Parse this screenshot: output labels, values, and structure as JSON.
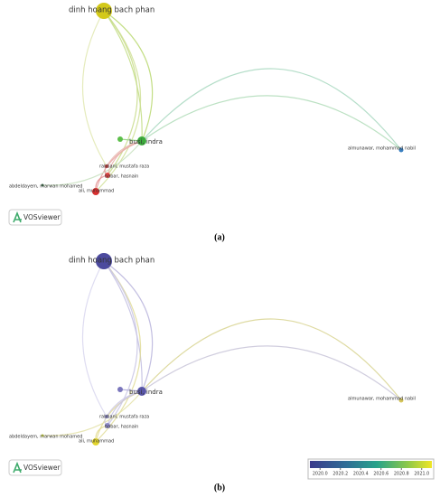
{
  "panels": [
    {
      "label": "(a)",
      "logo": "VOSviewer",
      "nodes": [
        {
          "label": "dinh hoang bach phan",
          "color": "#d3c91a"
        },
        {
          "label": "busi, indra",
          "color": "#3caa3c"
        },
        {
          "label": "rabbani, mustafa raza",
          "color": "#c84040"
        },
        {
          "label": "babar, hasnain",
          "color": "#e04545"
        },
        {
          "label": "abdeldayem, marwan mohamed",
          "color": "#3d6b4a"
        },
        {
          "label": "ali, muhammad",
          "color": "#d83030"
        },
        {
          "label": "almunawar, mohammad nabil",
          "color": "#3a7fc0"
        }
      ]
    },
    {
      "label": "(b)",
      "logo": "VOSviewer",
      "nodes": [
        {
          "label": "dinh hoang bach phan",
          "color": "#4c4a9e"
        },
        {
          "label": "busi, indra",
          "color": "#5956a8"
        },
        {
          "label": "rabbani, mustafa raza",
          "color": "#8a86c4"
        },
        {
          "label": "babar, hasnain",
          "color": "#8c88c8"
        },
        {
          "label": "abdeldayem, marwan mohamed",
          "color": "#c8d24a"
        },
        {
          "label": "ali, muhammad",
          "color": "#e2d52e"
        },
        {
          "label": "almunawar, mohammad nabil",
          "color": "#d6c65c"
        }
      ],
      "colorbar": {
        "lim": [
          2019.9,
          2021.1
        ],
        "ticks": [
          {
            "value": 2020,
            "label": "2020.0"
          },
          {
            "value": 2020.2,
            "label": "2020.2"
          },
          {
            "value": 2020.4,
            "label": "2020.4"
          },
          {
            "value": 2020.6,
            "label": "2020.6"
          },
          {
            "value": 2020.8,
            "label": "2020.8"
          },
          {
            "value": 2021,
            "label": "2021.0"
          }
        ]
      }
    }
  ]
}
